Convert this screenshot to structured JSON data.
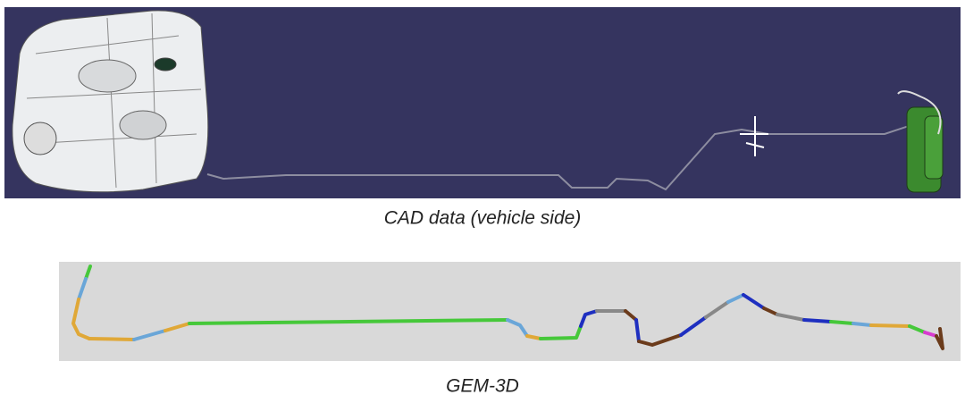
{
  "figure": {
    "top_caption": "CAD data (vehicle side)",
    "bottom_caption": "GEM-3D"
  }
}
